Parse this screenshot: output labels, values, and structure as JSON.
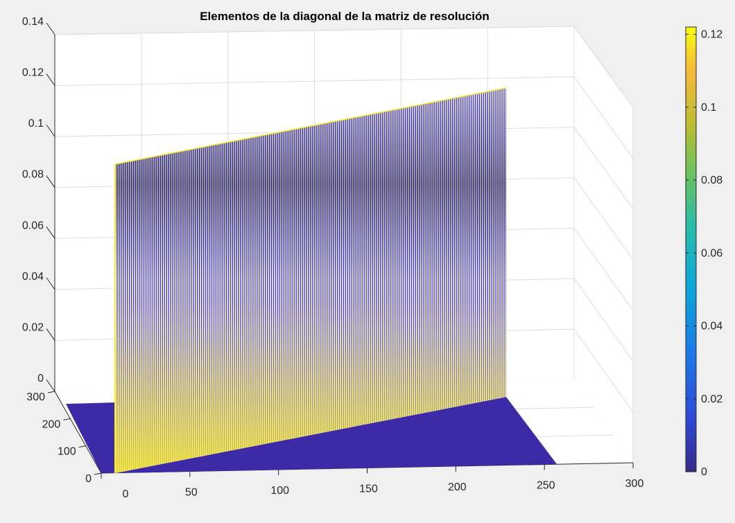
{
  "chart_data": {
    "type": "surface",
    "title": "Elementos de la diagonal de la matriz de resolución",
    "xlabel": "",
    "ylabel": "",
    "zlabel": "",
    "x_ticks": [
      "0",
      "50",
      "100",
      "150",
      "200",
      "250",
      "300"
    ],
    "y_ticks": [
      "0",
      "100",
      "200",
      "300"
    ],
    "z_ticks": [
      "0",
      "0.02",
      "0.04",
      "0.06",
      "0.08",
      "0.1",
      "0.12",
      "0.14"
    ],
    "x_range": [
      0,
      300
    ],
    "y_range": [
      0,
      300
    ],
    "z_range": [
      0,
      0.14
    ],
    "surface_description_values": {
      "diagonal_x_range": [
        0,
        233
      ],
      "diagonal_value_at_start": 0.09,
      "diagonal_value_at_end": 0.12,
      "off_diagonal_value": 0
    },
    "colorbar": {
      "colormap": "parula",
      "ticks": [
        "0",
        "0.02",
        "0.04",
        "0.06",
        "0.08",
        "0.1",
        "0.12"
      ],
      "range": [
        0,
        0.122
      ]
    },
    "colors": {
      "background": "#f0f0f0",
      "axes": "#ffffff",
      "base": "#3d2aa6",
      "wall_line": "#4a3ab8",
      "highlight": "#f7e82a"
    }
  }
}
